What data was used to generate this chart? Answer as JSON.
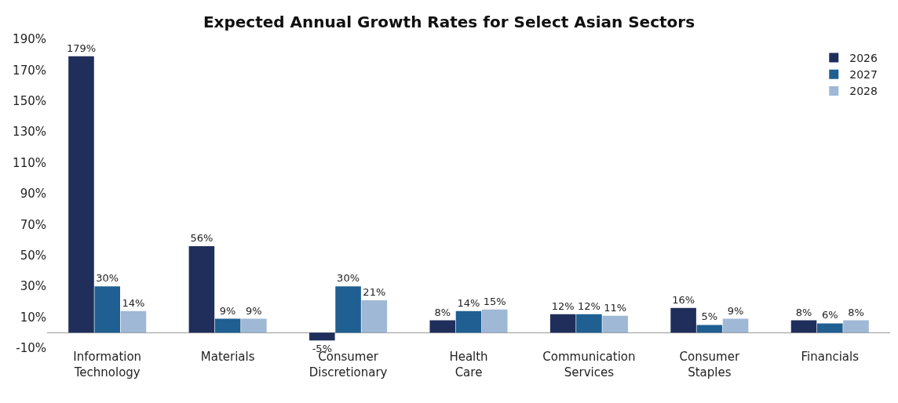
{
  "chart_data": {
    "type": "bar",
    "title": "Expected Annual Growth Rates for Select Asian Sectors",
    "categories": [
      "Information Technology",
      "Materials",
      "Consumer Discretionary",
      "Health Care",
      "Communication Services",
      "Consumer Staples",
      "Financials"
    ],
    "series": [
      {
        "name": "2026",
        "color": "#202e5b",
        "values": [
          179,
          56,
          -5,
          8,
          12,
          16,
          8
        ],
        "value_labels": [
          "179%",
          "56%",
          "-5%",
          "8%",
          "12%",
          "16%",
          "8%"
        ]
      },
      {
        "name": "2027",
        "color": "#1f5f91",
        "values": [
          30,
          9,
          30,
          14,
          12,
          5,
          6
        ],
        "value_labels": [
          "30%",
          "9%",
          "30%",
          "14%",
          "12%",
          "5%",
          "6%"
        ]
      },
      {
        "name": "2028",
        "color": "#9fb8d6",
        "values": [
          14,
          9,
          21,
          15,
          11,
          9,
          8
        ],
        "value_labels": [
          "14%",
          "9%",
          "21%",
          "15%",
          "11%",
          "9%",
          "8%"
        ]
      }
    ],
    "ylim": [
      -10,
      190
    ],
    "yticks": [
      {
        "value": -10,
        "label": "-10%"
      },
      {
        "value": 10,
        "label": "10%"
      },
      {
        "value": 30,
        "label": "30%"
      },
      {
        "value": 50,
        "label": "50%"
      },
      {
        "value": 70,
        "label": "70%"
      },
      {
        "value": 90,
        "label": "90%"
      },
      {
        "value": 110,
        "label": "110%"
      },
      {
        "value": 130,
        "label": "130%"
      },
      {
        "value": 150,
        "label": "150%"
      },
      {
        "value": 170,
        "label": "170%"
      },
      {
        "value": 190,
        "label": "190%"
      }
    ],
    "legend": "top right"
  }
}
